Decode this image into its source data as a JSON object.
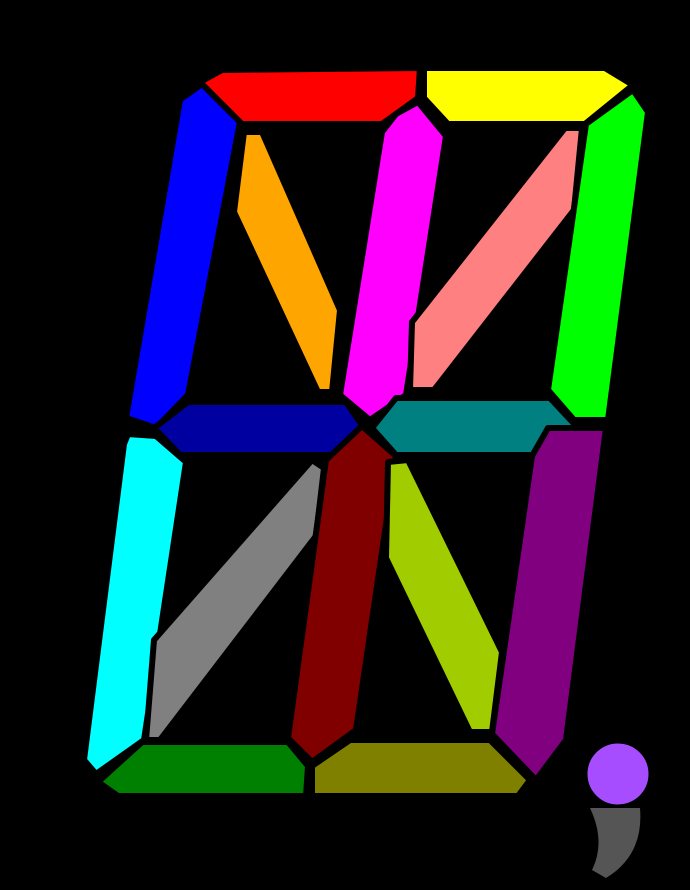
{
  "display": {
    "background": "#000000",
    "segment_outline": "#000000",
    "segments": [
      {
        "id": "top-left",
        "color": "#ff0000"
      },
      {
        "id": "top-right",
        "color": "#ffff00"
      },
      {
        "id": "upper-left-vertical",
        "color": "#0000ff"
      },
      {
        "id": "upper-left-diagonal",
        "color": "#ffa500"
      },
      {
        "id": "upper-center-vertical",
        "color": "#ff00ff"
      },
      {
        "id": "upper-right-diagonal",
        "color": "#ff8080"
      },
      {
        "id": "upper-right-vertical",
        "color": "#00ff00"
      },
      {
        "id": "middle-left",
        "color": "#0000a0"
      },
      {
        "id": "middle-right",
        "color": "#008080"
      },
      {
        "id": "lower-left-vertical",
        "color": "#00ffff"
      },
      {
        "id": "lower-left-diagonal",
        "color": "#808080"
      },
      {
        "id": "lower-center-vertical",
        "color": "#800000"
      },
      {
        "id": "lower-right-diagonal",
        "color": "#a0cc00"
      },
      {
        "id": "lower-right-vertical",
        "color": "#800080"
      },
      {
        "id": "bottom-left",
        "color": "#008000"
      },
      {
        "id": "bottom-right",
        "color": "#808000"
      }
    ],
    "decimal_point": {
      "color": "#a64dff"
    },
    "comma_tail": {
      "color": "#555555"
    }
  }
}
